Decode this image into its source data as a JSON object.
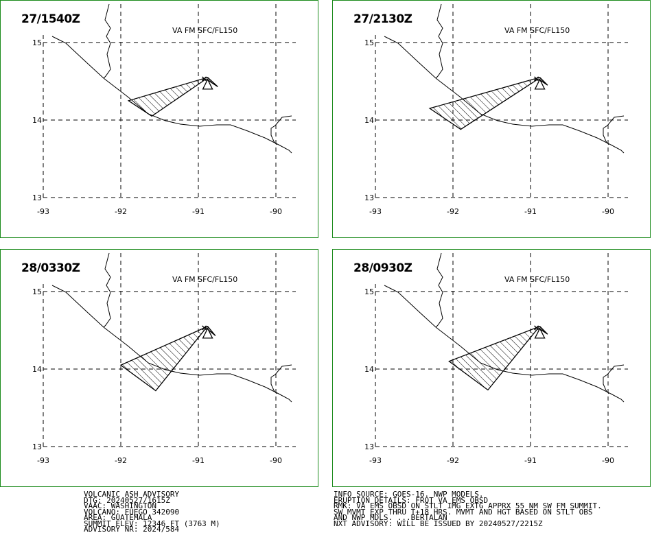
{
  "panels": [
    {
      "time": "27/1540Z",
      "level": "VA FM SFC/FL150",
      "polygon": [
        [
          -91.9,
          14.25
        ],
        [
          -91.6,
          14.05
        ],
        [
          -90.9,
          14.53
        ],
        [
          -90.75,
          14.43
        ],
        [
          -90.88,
          14.55
        ]
      ]
    },
    {
      "time": "27/2130Z",
      "level": "VA FM SFC/FL150",
      "polygon": [
        [
          -92.3,
          14.15
        ],
        [
          -91.9,
          13.88
        ],
        [
          -90.9,
          14.53
        ],
        [
          -90.78,
          14.45
        ],
        [
          -90.88,
          14.55
        ]
      ]
    },
    {
      "time": "28/0330Z",
      "level": "VA FM SFC/FL150",
      "polygon": [
        [
          -92.0,
          14.05
        ],
        [
          -91.55,
          13.72
        ],
        [
          -90.9,
          14.53
        ],
        [
          -90.78,
          14.43
        ],
        [
          -90.88,
          14.55
        ]
      ]
    },
    {
      "time": "28/0930Z",
      "level": "VA FM SFC/FL150",
      "polygon": [
        [
          -92.05,
          14.1
        ],
        [
          -91.55,
          13.73
        ],
        [
          -90.9,
          14.53
        ],
        [
          -90.78,
          14.45
        ],
        [
          -90.88,
          14.55
        ]
      ]
    }
  ],
  "axes": {
    "lon_ticks": [
      "-93",
      "-92",
      "-91",
      "-90"
    ],
    "lat_ticks": [
      "15",
      "14",
      "13"
    ]
  },
  "advisory_left": [
    "VOLCANIC ASH ADVISORY",
    "DTG: 20240527/1615Z",
    "VAAC: WASHINGTON",
    "VOLCANO: FUEGO 342090",
    "AREA: GUATEMALA",
    "SUMMIT ELEV: 12346 FT (3763 M)",
    "ADVISORY NR: 2024/584"
  ],
  "advisory_right": [
    "INFO SOURCE: GOES-16. NWP MODELS.",
    "ERUPTION DETAILS: FRQT VA EMS OBSD",
    "RMK: VA EMS OBSD ON STLT IMG EXTG APPRX 55 NM SW FM SUMMIT.",
    "SW MVMT EXP THRU T+18 HRS. MVMT AND HGT BASED ON STLT OBS",
    "AND NWP MDLS. ...BERTALAN",
    "NXT ADVISORY: WILL BE ISSUED BY 20240527/2215Z"
  ],
  "volcano": {
    "name": "FUEGO",
    "lon": -90.88,
    "lat": 14.47,
    "icon": "volcano-triangle-icon"
  },
  "colors": {
    "panel_border": "#1a8a1a",
    "lines": "#000000"
  }
}
